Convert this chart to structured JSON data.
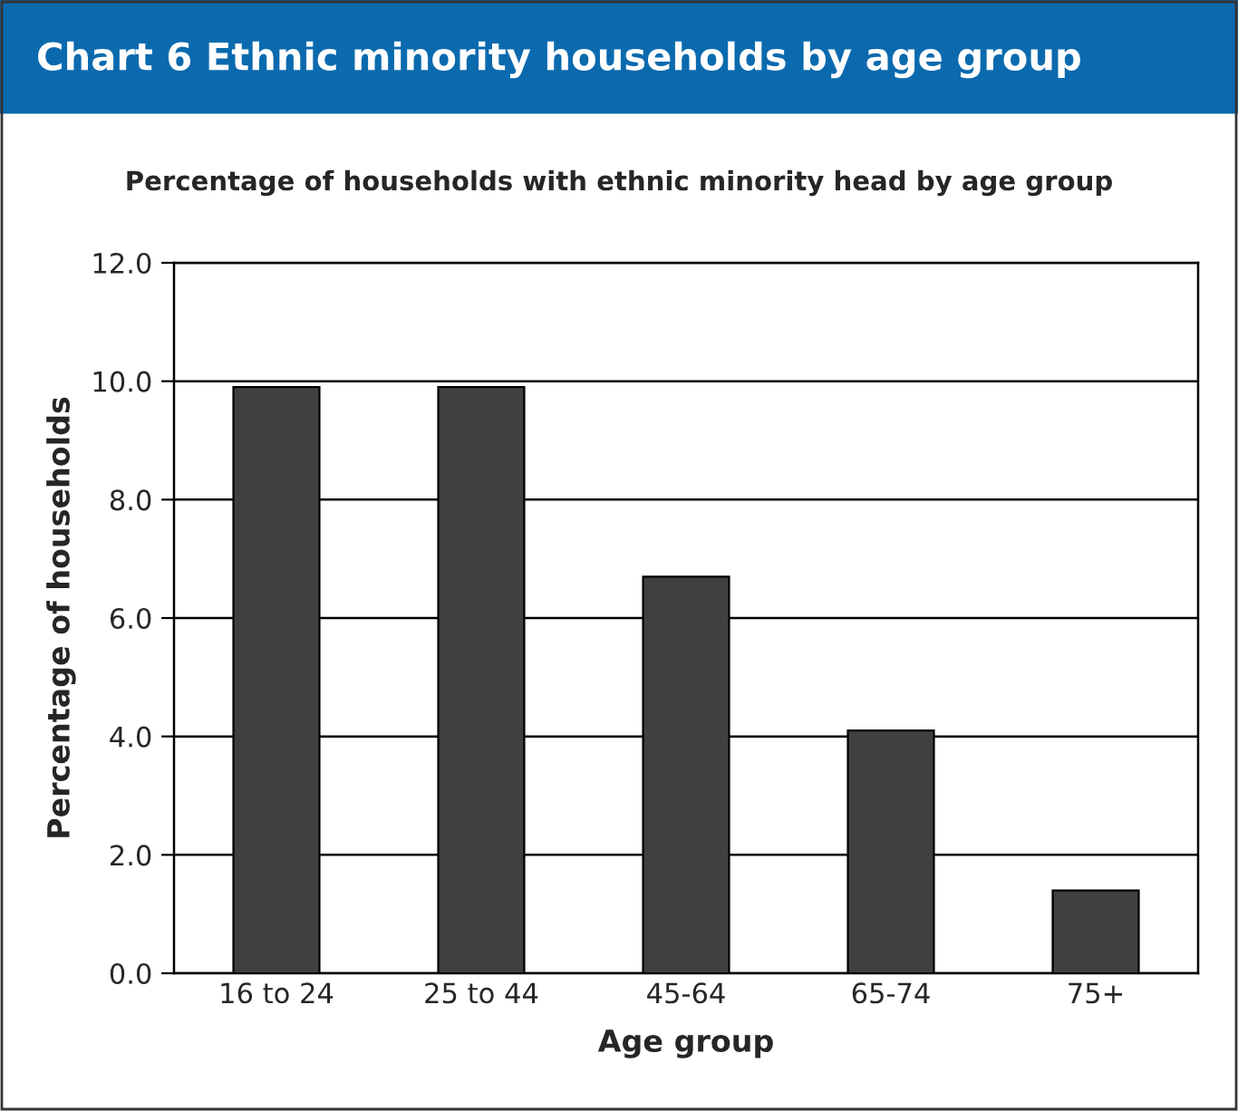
{
  "chart_data": {
    "type": "bar",
    "title": "Chart 6 Ethnic minority households by age group",
    "subtitle": "Percentage of households with ethnic minority head by age group",
    "xlabel": "Age group",
    "ylabel": "Percentage of households",
    "categories": [
      "16 to 24",
      "25 to 44",
      "45-64",
      "65-74",
      "75+"
    ],
    "values": [
      9.9,
      9.9,
      6.7,
      4.1,
      1.4
    ],
    "color": "#404040",
    "ylim": [
      0,
      12
    ],
    "yticks": [
      {
        "value": 0,
        "label": "0.0"
      },
      {
        "value": 2,
        "label": "2.0"
      },
      {
        "value": 4,
        "label": "4.0"
      },
      {
        "value": 6,
        "label": "6.0"
      },
      {
        "value": 8,
        "label": "8.0"
      },
      {
        "value": 10,
        "label": "10.0"
      },
      {
        "value": 12,
        "label": "12.0"
      }
    ],
    "grid": "y"
  }
}
